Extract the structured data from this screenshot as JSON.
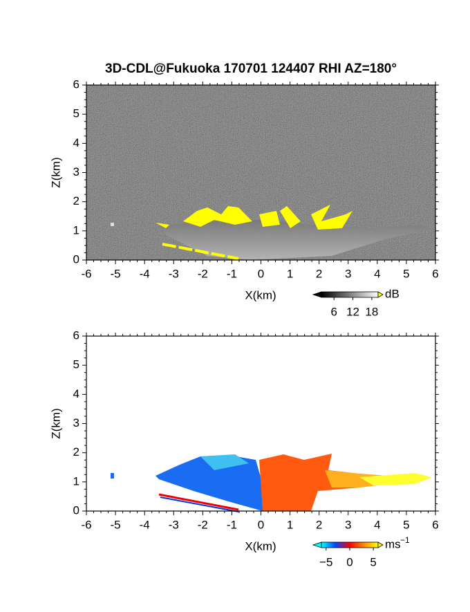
{
  "title": "3D-CDL@Fukuoka 170701 124407 RHI AZ=180°",
  "chart_data": [
    {
      "type": "rhi",
      "xlabel": "X(km)",
      "ylabel": "Z(km)",
      "xlim": [
        -6,
        6
      ],
      "ylim": [
        0,
        6
      ],
      "xticks": [
        -6,
        -5,
        -4,
        -3,
        -2,
        -1,
        0,
        1,
        2,
        3,
        4,
        5,
        6
      ],
      "yticks": [
        0,
        1,
        2,
        3,
        4,
        5,
        6
      ],
      "colorbar": {
        "unit": "dB",
        "lim": [
          2,
          20
        ],
        "ticks": [
          6,
          12,
          18
        ],
        "colors": [
          "#000000",
          "#ffffff"
        ],
        "over": "#ffff00"
      }
    },
    {
      "type": "rhi",
      "xlabel": "X(km)",
      "ylabel": "Z(km)",
      "xlim": [
        -6,
        6
      ],
      "ylim": [
        0,
        6
      ],
      "xticks": [
        -6,
        -5,
        -4,
        -3,
        -2,
        -1,
        0,
        1,
        2,
        3,
        4,
        5,
        6
      ],
      "yticks": [
        0,
        1,
        2,
        3,
        4,
        5,
        6
      ],
      "colorbar": {
        "unit": "ms",
        "unit_sup": "−1",
        "lim": [
          -6,
          6
        ],
        "ticks": [
          {
            "value": -5,
            "label": "−5"
          },
          0,
          5
        ],
        "colors": [
          "#00ffff",
          "#0044ff",
          "#ff0000",
          "#ff8800",
          "#ffff00"
        ]
      }
    }
  ]
}
